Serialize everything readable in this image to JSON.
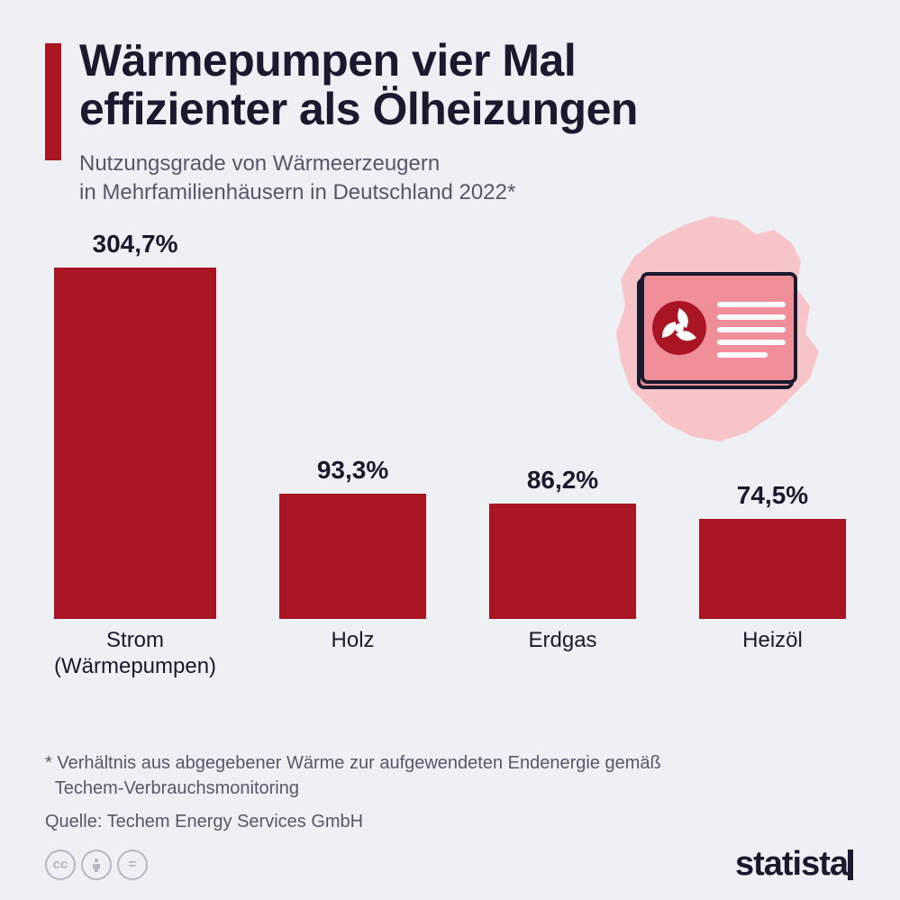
{
  "title_line1": "Wärmepumpen vier Mal",
  "title_line2": "effizienter als Ölheizungen",
  "subtitle_line1": "Nutzungsgrade von Wärmeerzeugern",
  "subtitle_line2": "in Mehrfamilienhäusern in Deutschland 2022*",
  "chart": {
    "type": "bar",
    "bar_color": "#a91522",
    "background": "#eef0f4",
    "value_fontsize": 28,
    "label_fontsize": 24,
    "max_value": 304.7,
    "bars": [
      {
        "label_line1": "Strom",
        "label_line2": "(Wärmepumpen)",
        "value": 304.7,
        "display": "304,7%"
      },
      {
        "label_line1": "Holz",
        "label_line2": "",
        "value": 93.3,
        "display": "93,3%"
      },
      {
        "label_line1": "Erdgas",
        "label_line2": "",
        "value": 86.2,
        "display": "86,2%"
      },
      {
        "label_line1": "Heizöl",
        "label_line2": "",
        "value": 74.5,
        "display": "74,5%"
      }
    ]
  },
  "footnote_line1": "* Verhältnis aus abgegebener Wärme zur aufgewendeten Endenergie gemäß",
  "footnote_line2": "  Techem-Verbrauchsmonitoring",
  "source": "Quelle: Techem Energy Services GmbH",
  "logo_text": "statista",
  "colors": {
    "accent": "#a91522",
    "text_dark": "#1a1a2e",
    "text_muted": "#55586a",
    "map_fill": "#f6c4c9",
    "card_fill": "#f08f9a",
    "card_border": "#1a1a2e"
  }
}
